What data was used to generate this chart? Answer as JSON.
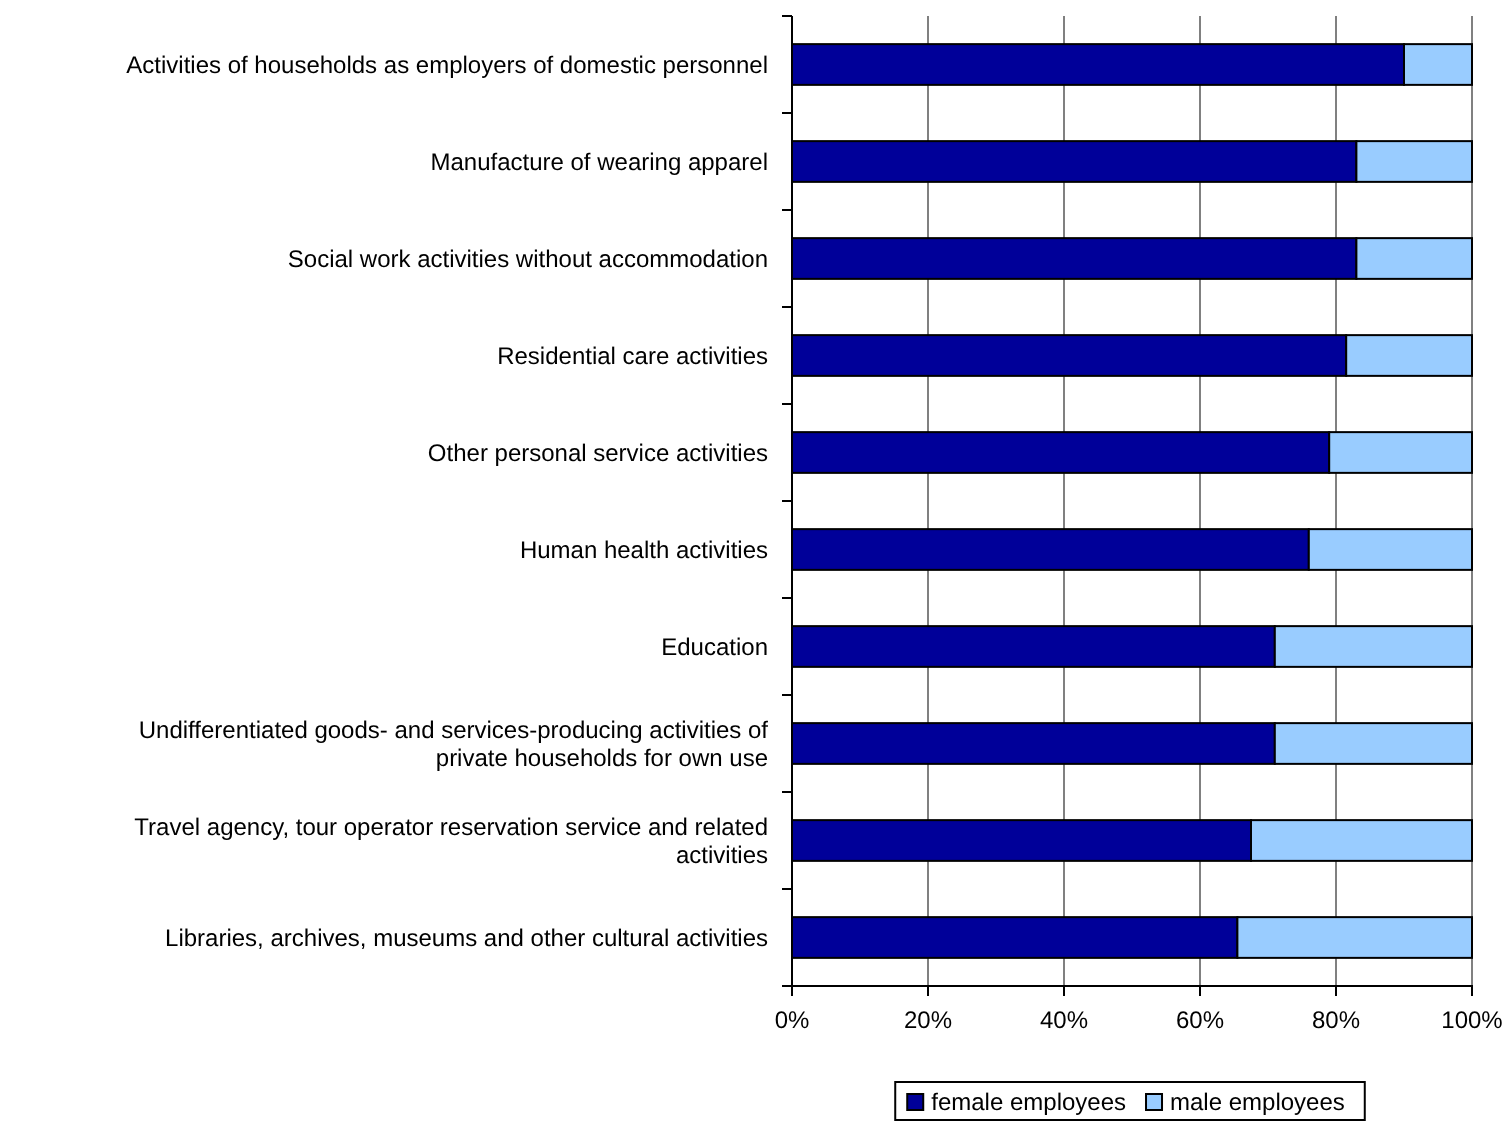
{
  "chart_data": {
    "type": "bar",
    "orientation": "horizontal",
    "stacked": true,
    "categories": [
      "Activities of households as employers of domestic personnel",
      "Manufacture of wearing apparel",
      "Social work activities without accommodation",
      "Residential care activities",
      "Other personal service activities",
      "Human health activities",
      "Education",
      "Undifferentiated goods- and services-producing activities of private households for own use",
      "Travel agency, tour operator reservation service and related activities",
      "Libraries, archives, museums and other cultural activities"
    ],
    "series": [
      {
        "name": "female employees",
        "color": "#000099",
        "values": [
          90,
          83,
          83,
          81.5,
          79,
          76,
          71,
          71,
          67.5,
          65.5
        ]
      },
      {
        "name": "male employees",
        "color": "#99ccff",
        "values": [
          10,
          17,
          17,
          18.5,
          21,
          24,
          29,
          29,
          32.5,
          34.5
        ]
      }
    ],
    "xlim": [
      0,
      100
    ],
    "xticks": [
      {
        "value": 0,
        "label": "0%"
      },
      {
        "value": 20,
        "label": "20%"
      },
      {
        "value": 40,
        "label": "40%"
      },
      {
        "value": 60,
        "label": "60%"
      },
      {
        "value": 80,
        "label": "80%"
      },
      {
        "value": 100,
        "label": "100%"
      }
    ],
    "grid": "x",
    "legend": "bottom"
  }
}
